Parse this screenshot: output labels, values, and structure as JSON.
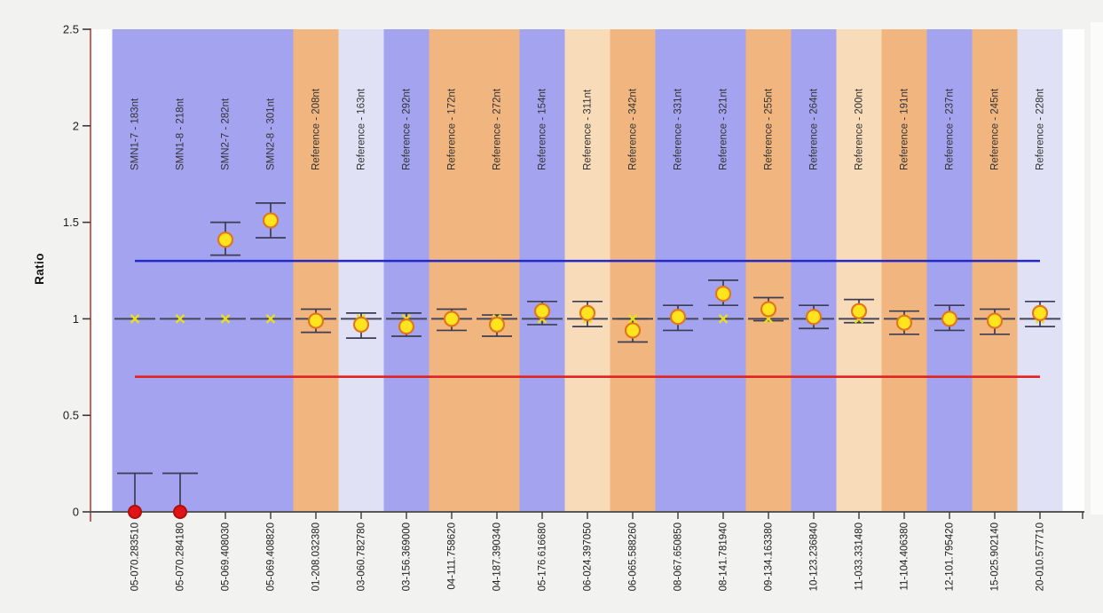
{
  "page": {
    "background_color": "#f2f2f0",
    "plot_background_color": "#fefefe"
  },
  "chart_data": {
    "type": "scatter",
    "title": "",
    "ylabel": "Ratio",
    "xlabel": "",
    "ylim": [
      0,
      2.5
    ],
    "y_ticks": [
      0,
      0.5,
      1,
      1.5,
      2,
      2.5
    ],
    "y_tick_labels": [
      "0",
      "0.5",
      "1",
      "1.5",
      "2",
      "2.5"
    ],
    "grid": false,
    "legend": "none",
    "upper_threshold": {
      "value": 1.3,
      "color": "#2328c8"
    },
    "lower_threshold": {
      "value": 0.7,
      "color": "#e12222"
    },
    "reference_line": {
      "value": 1.0,
      "color": "#46465a",
      "x_marker_color": "#e8de1f"
    },
    "error_bar_color": "#3c3c52",
    "axis_colors": {
      "y_axis_line": "#b54040",
      "x_axis_line": "#58585a",
      "tick": "#3a3a3a",
      "tick_label": "#1c1c1c",
      "probe_label": "#333333"
    },
    "band_palette": {
      "purple": "#a3a3f0",
      "orange": "#f1b57f",
      "lavender": "#e1e1f6",
      "peach": "#f8dcba"
    },
    "marker_palette": {
      "yellow": {
        "fill": "#ffe41e",
        "stroke": "#e2761e"
      },
      "red": {
        "fill": "#e01414",
        "stroke": "#b00d0d"
      }
    },
    "probes": [
      {
        "label": "SMN1-7 - 183nt",
        "x_label": "05-070.283510",
        "band": "purple",
        "ratio": 0.0,
        "err_low": 0.0,
        "err_high": 0.2,
        "marker": "red"
      },
      {
        "label": "SMN1-8 - 218nt",
        "x_label": "05-070.284180",
        "band": "purple",
        "ratio": 0.0,
        "err_low": 0.0,
        "err_high": 0.2,
        "marker": "red"
      },
      {
        "label": "SMN2-7 - 282nt",
        "x_label": "05-069.408030",
        "band": "purple",
        "ratio": 1.41,
        "err_low": 1.33,
        "err_high": 1.5,
        "marker": "yellow"
      },
      {
        "label": "SMN2-8 - 301nt",
        "x_label": "05-069.408820",
        "band": "purple",
        "ratio": 1.51,
        "err_low": 1.42,
        "err_high": 1.6,
        "marker": "yellow"
      },
      {
        "label": "Reference - 208nt",
        "x_label": "01-208.032380",
        "band": "orange",
        "ratio": 0.99,
        "err_low": 0.93,
        "err_high": 1.05,
        "marker": "yellow"
      },
      {
        "label": "Reference - 163nt",
        "x_label": "03-060.782780",
        "band": "lavender",
        "ratio": 0.97,
        "err_low": 0.9,
        "err_high": 1.03,
        "marker": "yellow"
      },
      {
        "label": "Reference - 292nt",
        "x_label": "03-156.369000",
        "band": "purple",
        "ratio": 0.96,
        "err_low": 0.91,
        "err_high": 1.03,
        "marker": "yellow"
      },
      {
        "label": "Reference - 172nt",
        "x_label": "04-111.758620",
        "band": "orange",
        "ratio": 1.0,
        "err_low": 0.94,
        "err_high": 1.05,
        "marker": "yellow"
      },
      {
        "label": "Reference - 272nt",
        "x_label": "04-187.390340",
        "band": "orange",
        "ratio": 0.97,
        "err_low": 0.91,
        "err_high": 1.02,
        "marker": "yellow"
      },
      {
        "label": "Reference - 154nt",
        "x_label": "05-176.616680",
        "band": "purple",
        "ratio": 1.04,
        "err_low": 0.97,
        "err_high": 1.09,
        "marker": "yellow"
      },
      {
        "label": "Reference - 311nt",
        "x_label": "06-024.397050",
        "band": "peach",
        "ratio": 1.03,
        "err_low": 0.96,
        "err_high": 1.09,
        "marker": "yellow"
      },
      {
        "label": "Reference - 342nt",
        "x_label": "06-065.588260",
        "band": "orange",
        "ratio": 0.94,
        "err_low": 0.88,
        "err_high": 1.0,
        "marker": "yellow"
      },
      {
        "label": "Reference - 331nt",
        "x_label": "08-067.650850",
        "band": "purple",
        "ratio": 1.01,
        "err_low": 0.94,
        "err_high": 1.07,
        "marker": "yellow"
      },
      {
        "label": "Reference - 321nt",
        "x_label": "08-141.781940",
        "band": "purple",
        "ratio": 1.13,
        "err_low": 1.07,
        "err_high": 1.2,
        "marker": "yellow"
      },
      {
        "label": "Reference - 255nt",
        "x_label": "09-134.163380",
        "band": "orange",
        "ratio": 1.05,
        "err_low": 0.99,
        "err_high": 1.11,
        "marker": "yellow"
      },
      {
        "label": "Reference - 264nt",
        "x_label": "10-123.236840",
        "band": "purple",
        "ratio": 1.01,
        "err_low": 0.95,
        "err_high": 1.07,
        "marker": "yellow"
      },
      {
        "label": "Reference - 200nt",
        "x_label": "11-033.331480",
        "band": "peach",
        "ratio": 1.04,
        "err_low": 0.98,
        "err_high": 1.1,
        "marker": "yellow"
      },
      {
        "label": "Reference - 191nt",
        "x_label": "11-104.406380",
        "band": "orange",
        "ratio": 0.98,
        "err_low": 0.92,
        "err_high": 1.04,
        "marker": "yellow"
      },
      {
        "label": "Reference - 237nt",
        "x_label": "12-101.795420",
        "band": "purple",
        "ratio": 1.0,
        "err_low": 0.94,
        "err_high": 1.07,
        "marker": "yellow"
      },
      {
        "label": "Reference - 245nt",
        "x_label": "15-025.902140",
        "band": "orange",
        "ratio": 0.99,
        "err_low": 0.92,
        "err_high": 1.05,
        "marker": "yellow"
      },
      {
        "label": "Reference - 228nt",
        "x_label": "20-010.577710",
        "band": "lavender",
        "ratio": 1.03,
        "err_low": 0.96,
        "err_high": 1.09,
        "marker": "yellow"
      }
    ]
  }
}
